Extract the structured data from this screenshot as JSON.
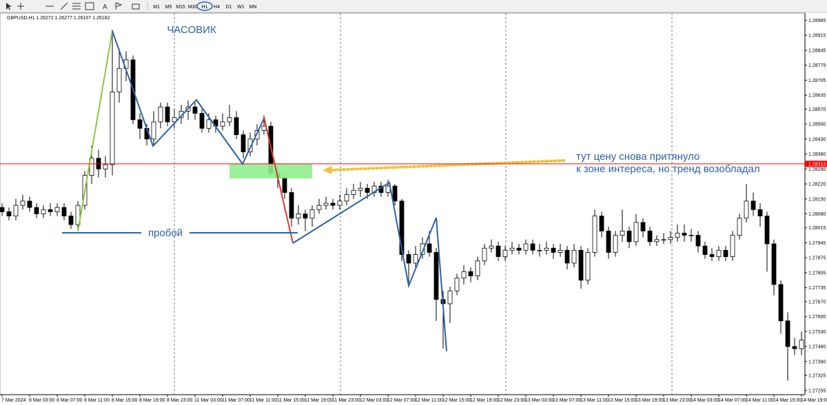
{
  "toolbar": {
    "timeframes": [
      "M1",
      "M5",
      "M15",
      "M30",
      "H1",
      "H4",
      "D1",
      "W1",
      "MN"
    ]
  },
  "chart_data": {
    "type": "candlestick",
    "title": "GBPUSD,H1  1.26272 1.26277 1.26107 1.26162",
    "categories": [
      "7 Mar 2024",
      null,
      null,
      null,
      "8 Mar 03:00",
      null,
      null,
      null,
      "8 Mar 07:00",
      null,
      null,
      null,
      "8 Mar 11:00",
      null,
      null,
      null,
      "8 Mar 15:00",
      null,
      null,
      null,
      "8 Mar 19:00",
      null,
      null,
      null,
      "8 Mar 23:00",
      null,
      null,
      null,
      "11 Mar 03:00",
      null,
      null,
      null,
      "11 Mar 07:00",
      null,
      null,
      null,
      "11 Mar 11:00",
      null,
      null,
      null,
      "11 Mar 15:00",
      null,
      null,
      null,
      "11 Mar 19:00",
      null,
      null,
      null,
      "11 Mar 23:00",
      null,
      null,
      null,
      "12 Mar 03:00",
      null,
      null,
      null,
      "12 Mar 07:00",
      null,
      null,
      null,
      "12 Mar 11:00",
      null,
      null,
      null,
      "12 Mar 15:00",
      null,
      null,
      null,
      "12 Mar 19:00",
      null,
      null,
      null,
      "12 Mar 23:00",
      null,
      null,
      null,
      "13 Mar 03:00",
      null,
      null,
      null,
      "13 Mar 07:00",
      null,
      null,
      null,
      "13 Mar 11:00",
      null,
      null,
      null,
      "13 Mar 15:00",
      null,
      null,
      null,
      "13 Mar 19:00",
      null,
      null,
      null,
      "13 Mar 23:00",
      null,
      null,
      null,
      "14 Mar 03:00",
      null,
      null,
      null,
      "14 Mar 07:00",
      null,
      null,
      null,
      "14 Mar 11:00",
      null,
      null,
      null,
      "14 Mar 15:00",
      null,
      null,
      null,
      "14 Mar 19:00"
    ],
    "open": [
      1.2811,
      1.2809,
      1.2807,
      1.2812,
      1.2814,
      1.2811,
      1.2808,
      1.281,
      1.2809,
      1.2811,
      1.2807,
      1.2803,
      1.2812,
      1.2826,
      1.2834,
      1.2829,
      1.2831,
      1.2865,
      1.2876,
      1.288,
      1.2852,
      1.2848,
      1.2843,
      1.2851,
      1.2858,
      1.2851,
      1.2853,
      1.2856,
      1.2858,
      1.2855,
      1.2848,
      1.2852,
      1.2849,
      1.2851,
      1.2853,
      1.2845,
      1.2837,
      1.2843,
      1.2847,
      1.2849,
      1.2827,
      1.2825,
      1.2818,
      1.2806,
      1.2808,
      1.2806,
      1.281,
      1.2812,
      1.2813,
      1.2812,
      1.2814,
      1.2817,
      1.2819,
      1.282,
      1.2818,
      1.2821,
      1.2818,
      1.2821,
      1.2814,
      1.2789,
      1.2785,
      1.2789,
      1.2794,
      1.279,
      1.2768,
      1.2766,
      1.2772,
      1.2778,
      1.2781,
      1.2779,
      1.2786,
      1.2792,
      1.2793,
      1.2788,
      1.2791,
      1.2792,
      1.2791,
      1.2794,
      1.2791,
      1.2791,
      1.2792,
      1.279,
      1.2791,
      1.2785,
      1.2791,
      1.2777,
      1.279,
      1.2807,
      1.28,
      1.279,
      1.2798,
      1.28,
      1.2795,
      1.2804,
      1.28,
      1.2795,
      1.2796,
      1.2796,
      1.2797,
      1.2799,
      1.2798,
      1.2798,
      1.2793,
      1.2789,
      1.2788,
      1.2791,
      1.2788,
      1.2798,
      1.2806,
      1.2814,
      1.281,
      1.2807,
      1.2794,
      1.2775,
      1.2758,
      1.2746,
      1.2745
    ],
    "high": [
      1.2813,
      1.2811,
      1.2815,
      1.2817,
      1.2816,
      1.2813,
      1.2812,
      1.2813,
      1.2813,
      1.2813,
      1.2809,
      1.2814,
      1.2828,
      1.284,
      1.2838,
      1.2835,
      1.2894,
      1.2885,
      1.2884,
      1.2882,
      1.2855,
      1.285,
      1.2856,
      1.286,
      1.286,
      1.2857,
      1.2859,
      1.2861,
      1.286,
      1.2857,
      1.2855,
      1.2854,
      1.2855,
      1.2859,
      1.2856,
      1.2847,
      1.2846,
      1.285,
      1.2854,
      1.2851,
      1.283,
      1.2827,
      1.282,
      1.2812,
      1.281,
      1.2812,
      1.2815,
      1.2816,
      1.2815,
      1.2817,
      1.282,
      1.2822,
      1.2823,
      1.2822,
      1.2823,
      1.2823,
      1.2824,
      1.2822,
      1.2815,
      1.2791,
      1.2793,
      1.2797,
      1.28,
      1.2792,
      1.2772,
      1.2774,
      1.278,
      1.2784,
      1.2783,
      1.2788,
      1.2794,
      1.2796,
      1.2795,
      1.2793,
      1.2795,
      1.2794,
      1.2796,
      1.2796,
      1.2794,
      1.2795,
      1.2794,
      1.2794,
      1.2793,
      1.2794,
      1.2793,
      1.2792,
      1.281,
      1.2809,
      1.2802,
      1.28,
      1.281,
      1.2802,
      1.2808,
      1.2806,
      1.2802,
      1.2798,
      1.2799,
      1.28,
      1.2803,
      1.2803,
      1.2801,
      1.28,
      1.2795,
      1.2792,
      1.2793,
      1.2793,
      1.28,
      1.2808,
      1.2822,
      1.2818,
      1.2813,
      1.2809,
      1.2796,
      1.2777,
      1.2762,
      1.275,
      1.2753
    ],
    "low": [
      1.2807,
      1.2805,
      1.2805,
      1.281,
      1.2809,
      1.2806,
      1.2806,
      1.2807,
      1.2807,
      1.2805,
      1.2801,
      1.2801,
      1.281,
      1.2822,
      1.2825,
      1.2825,
      1.2826,
      1.286,
      1.287,
      1.285,
      1.2843,
      1.284,
      1.284,
      1.2848,
      1.2849,
      1.2848,
      1.285,
      1.2852,
      1.2852,
      1.2846,
      1.2846,
      1.2846,
      1.2847,
      1.2849,
      1.2843,
      1.2834,
      1.2835,
      1.284,
      1.2845,
      1.2825,
      1.282,
      1.2815,
      1.2802,
      1.2803,
      1.28,
      1.2802,
      1.2808,
      1.281,
      1.281,
      1.281,
      1.2812,
      1.2815,
      1.2816,
      1.2815,
      1.2816,
      1.2816,
      1.2816,
      1.2812,
      1.2786,
      1.2775,
      1.2783,
      1.2787,
      1.2788,
      1.2758,
      1.2745,
      1.2757,
      1.277,
      1.2775,
      1.2776,
      1.2777,
      1.2784,
      1.279,
      1.2786,
      1.2786,
      1.2789,
      1.2789,
      1.2789,
      1.2789,
      1.2788,
      1.2789,
      1.2787,
      1.2788,
      1.2782,
      1.2783,
      1.2773,
      1.2775,
      1.2788,
      1.2797,
      1.2787,
      1.2788,
      1.2795,
      1.2792,
      1.2793,
      1.2797,
      1.2793,
      1.2793,
      1.2794,
      1.2794,
      1.2795,
      1.2795,
      1.2795,
      1.279,
      1.2787,
      1.2786,
      1.2786,
      1.2786,
      1.2786,
      1.2796,
      1.2804,
      1.2807,
      1.2802,
      1.2781,
      1.277,
      1.2752,
      1.273,
      1.2742,
      1.2742
    ],
    "close": [
      1.2809,
      1.2807,
      1.2812,
      1.2814,
      1.2811,
      1.2808,
      1.281,
      1.2809,
      1.2811,
      1.2807,
      1.2803,
      1.2812,
      1.2826,
      1.2834,
      1.2829,
      1.2831,
      1.2865,
      1.2876,
      1.288,
      1.2852,
      1.2848,
      1.2843,
      1.2851,
      1.2858,
      1.2851,
      1.2853,
      1.2856,
      1.2858,
      1.2855,
      1.2848,
      1.2852,
      1.2849,
      1.2851,
      1.2853,
      1.2845,
      1.2837,
      1.2843,
      1.2847,
      1.2849,
      1.2827,
      1.2825,
      1.2818,
      1.2806,
      1.2808,
      1.2806,
      1.281,
      1.2812,
      1.2813,
      1.2812,
      1.2814,
      1.2817,
      1.2819,
      1.282,
      1.2818,
      1.2821,
      1.2818,
      1.2821,
      1.2814,
      1.2789,
      1.2785,
      1.2789,
      1.2794,
      1.279,
      1.2768,
      1.2766,
      1.2772,
      1.2778,
      1.2781,
      1.2779,
      1.2786,
      1.2792,
      1.2793,
      1.2788,
      1.2791,
      1.2792,
      1.2791,
      1.2794,
      1.2791,
      1.2791,
      1.2792,
      1.279,
      1.2791,
      1.2785,
      1.2791,
      1.2777,
      1.279,
      1.2807,
      1.28,
      1.279,
      1.2798,
      1.28,
      1.2795,
      1.2804,
      1.28,
      1.2795,
      1.2796,
      1.2796,
      1.2797,
      1.2799,
      1.2798,
      1.2798,
      1.2793,
      1.2789,
      1.2788,
      1.2791,
      1.2788,
      1.2798,
      1.2806,
      1.2814,
      1.281,
      1.2807,
      1.2794,
      1.2775,
      1.2758,
      1.2746,
      1.2745,
      1.2749
    ],
    "bull_color": "#ffffff",
    "bear_color": "#000000",
    "ylim": [
      1.27235,
      1.29025
    ],
    "yticks": [
      1.28985,
      1.28915,
      1.28845,
      1.28775,
      1.28705,
      1.28635,
      {
        "value": 1.2857,
        "label": "1.28570"
      },
      {
        "value": 1.285,
        "label": "1.28500"
      },
      {
        "value": 1.2843,
        "label": "1.28430"
      },
      {
        "value": 1.2836,
        "label": "1.28360"
      },
      {
        "value": 1.2829,
        "label": "1.28290"
      },
      {
        "value": 1.2822,
        "label": "1.28220"
      },
      {
        "value": 1.2815,
        "label": "1.28150"
      },
      {
        "value": 1.2808,
        "label": "1.28080"
      },
      1.28015,
      1.27945,
      1.27875,
      1.27805,
      1.27735,
      {
        "value": 1.2767,
        "label": "1.27670"
      },
      {
        "value": 1.276,
        "label": "1.27600"
      },
      {
        "value": 1.2753,
        "label": "1.27530"
      },
      {
        "value": 1.2746,
        "label": "1.27460"
      },
      {
        "value": 1.2739,
        "label": "1.27390"
      },
      1.27325,
      1.27255
    ],
    "hline": {
      "value": 1.28314,
      "color": "#ff0000"
    },
    "annotations": [
      "ЧАСОВИК",
      "пробой",
      "тут цену снова притянуло",
      "к зоне интереса, но тренд возобладал"
    ]
  }
}
